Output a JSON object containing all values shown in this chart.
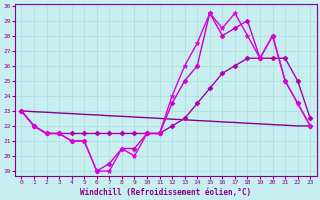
{
  "xlabel": "Windchill (Refroidissement éolien,°C)",
  "x_values": [
    0,
    1,
    2,
    3,
    4,
    5,
    6,
    7,
    8,
    9,
    10,
    11,
    12,
    13,
    14,
    15,
    16,
    17,
    18,
    19,
    20,
    21,
    22,
    23
  ],
  "series": [
    {
      "y": [
        23,
        22.95,
        22.91,
        22.86,
        22.82,
        22.77,
        22.73,
        22.68,
        22.64,
        22.59,
        22.55,
        22.5,
        22.45,
        22.41,
        22.36,
        22.32,
        22.27,
        22.23,
        22.18,
        22.14,
        22.09,
        22.05,
        22.0,
        22.0
      ],
      "color": "#880088",
      "marker": null,
      "markersize": 0,
      "linewidth": 1.0
    },
    {
      "y": [
        23,
        22,
        21.5,
        21.5,
        21.5,
        21.5,
        21.5,
        21.5,
        21.5,
        21.5,
        21.5,
        21.5,
        22.0,
        22.5,
        23.5,
        24.5,
        25.5,
        26.0,
        26.5,
        26.5,
        26.5,
        26.5,
        25.0,
        22.5
      ],
      "color": "#aa00aa",
      "marker": "D",
      "markersize": 2.5,
      "linewidth": 1.0
    },
    {
      "y": [
        23,
        22,
        21.5,
        21.5,
        21.0,
        21.0,
        19.0,
        19.5,
        20.5,
        20.5,
        21.5,
        21.5,
        23.5,
        25.0,
        26.0,
        29.5,
        28.0,
        28.5,
        29.0,
        26.5,
        28.0,
        25.0,
        23.5,
        22.0
      ],
      "color": "#cc00cc",
      "marker": "D",
      "markersize": 2.5,
      "linewidth": 1.0
    },
    {
      "y": [
        23,
        22,
        21.5,
        21.5,
        21.0,
        21.0,
        19.0,
        19.0,
        20.5,
        20.0,
        21.5,
        21.5,
        24.0,
        26.0,
        27.5,
        29.5,
        28.5,
        29.5,
        28.0,
        26.5,
        28.0,
        25.0,
        23.5,
        22.0
      ],
      "color": "#dd00dd",
      "marker": "*",
      "markersize": 3.5,
      "linewidth": 1.0
    }
  ],
  "xlim": [
    -0.5,
    23.5
  ],
  "ylim": [
    19,
    30
  ],
  "yticks": [
    19,
    20,
    21,
    22,
    23,
    24,
    25,
    26,
    27,
    28,
    29,
    30
  ],
  "xticks": [
    0,
    1,
    2,
    3,
    4,
    5,
    6,
    7,
    8,
    9,
    10,
    11,
    12,
    13,
    14,
    15,
    16,
    17,
    18,
    19,
    20,
    21,
    22,
    23
  ],
  "grid_color": "#aadddd",
  "bg_color": "#c8eef0",
  "spine_color": "#880088",
  "tick_color": "#880088",
  "label_color": "#880088"
}
